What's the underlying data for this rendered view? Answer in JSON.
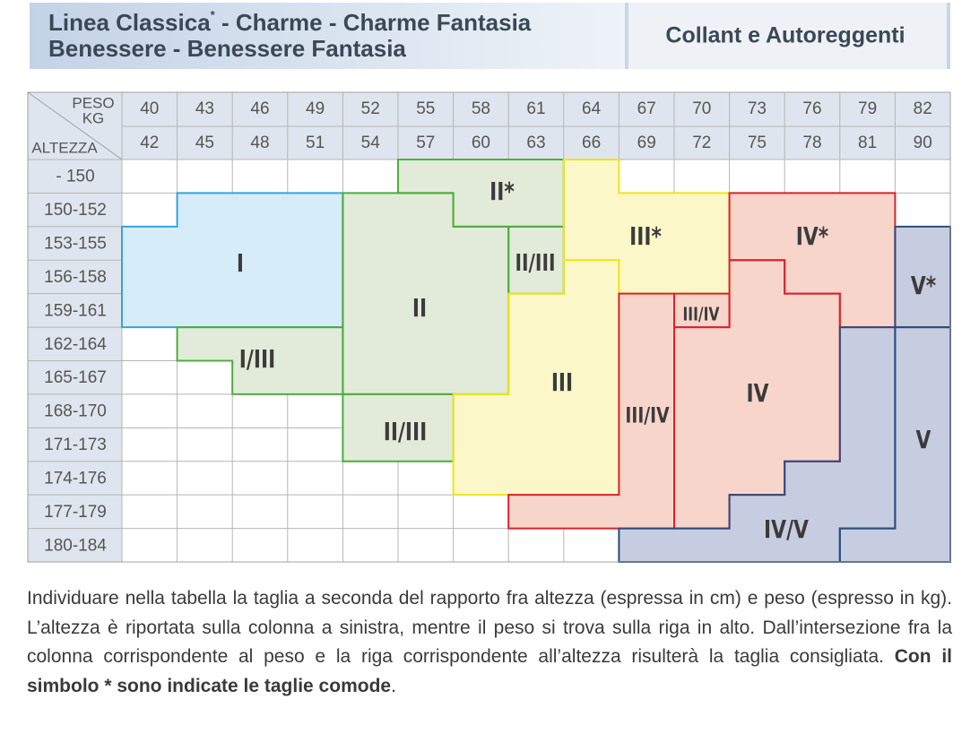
{
  "header": {
    "title_line1": "Linea Classica",
    "title_mark": "*",
    "title_line1_rest": " - Charme - Charme Fantasia",
    "title_line2": "Benessere - Benessere Fantasia",
    "right": "Collant e Autoreggenti"
  },
  "table": {
    "corner_top": [
      "PESO",
      "KG"
    ],
    "corner_bottom": "ALTEZZA",
    "weight_from": [
      40,
      43,
      46,
      49,
      52,
      55,
      58,
      61,
      64,
      67,
      70,
      73,
      76,
      79,
      82
    ],
    "weight_to": [
      42,
      45,
      48,
      51,
      54,
      57,
      60,
      63,
      66,
      69,
      72,
      75,
      78,
      81,
      90
    ],
    "heights": [
      "- 150",
      "150-152",
      "153-155",
      "156-158",
      "159-161",
      "162-164",
      "165-167",
      "168-170",
      "171-173",
      "174-176",
      "177-179",
      "180-184"
    ]
  },
  "sizes": [
    "I",
    "I/III",
    "II*",
    "II",
    "II/III",
    "II/III",
    "III*",
    "III",
    "III/IV",
    "III/IV",
    "IV*",
    "IV",
    "IV/V",
    "V*",
    "V"
  ],
  "note": {
    "text": "Individuare nella tabella la taglia a seconda del rapporto fra altezza (espressa in cm) e peso (espresso in kg). L’altezza è riportata sulla colonna a sinistra, mentre il peso si trova sulla riga in alto. Dall’intersezione fra la colonna corrispondente al peso e la riga corrispondente all’altezza risulterà la taglia consigliata. ",
    "bold": "Con il simbolo * sono indicate le taglie comode",
    "end": "."
  }
}
